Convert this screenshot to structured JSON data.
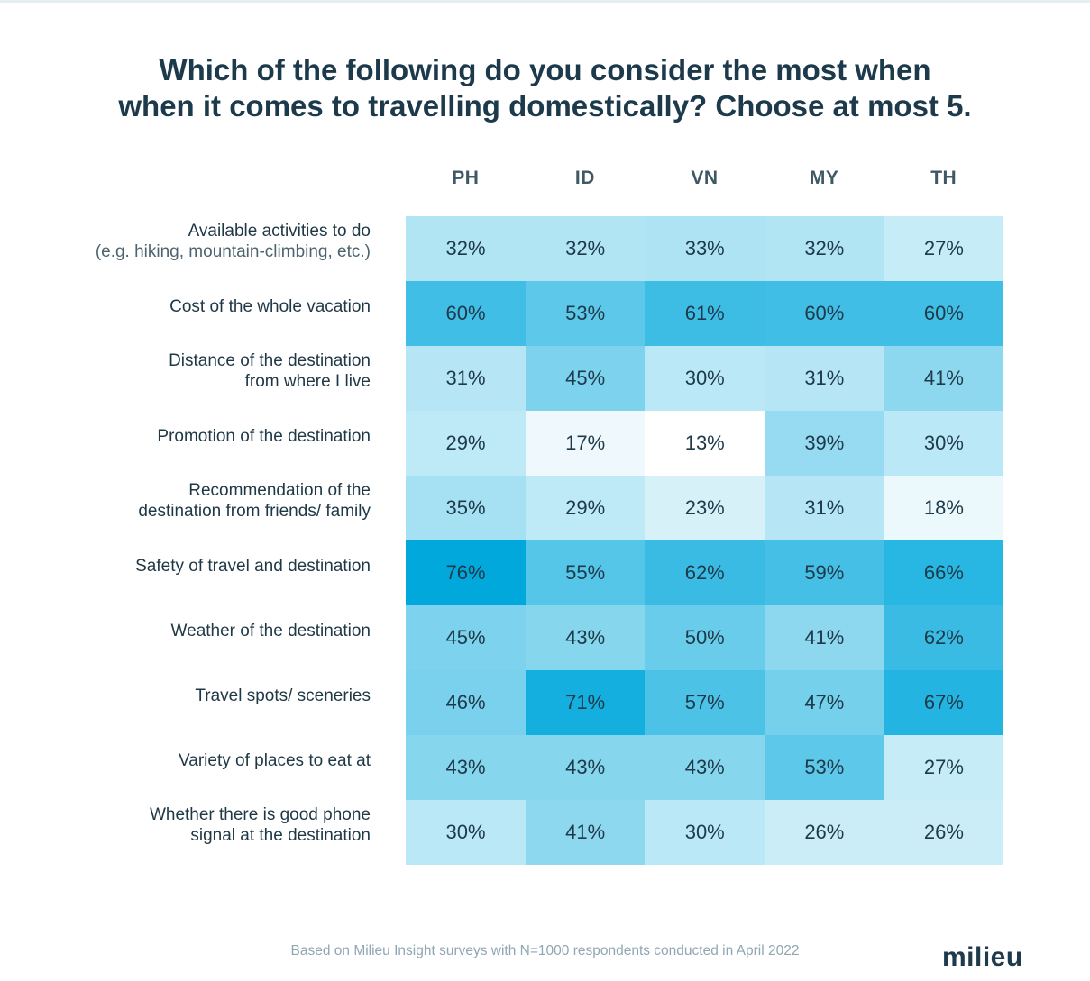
{
  "chart_data": {
    "type": "heatmap",
    "title_lines": [
      "Which of the following do you consider the most when",
      "when it comes to travelling domestically? Choose at most 5."
    ],
    "columns": [
      "PH",
      "ID",
      "VN",
      "MY",
      "TH"
    ],
    "rows": [
      {
        "label": [
          "Available activities to do"
        ],
        "sublabel": "(e.g. hiking, mountain-climbing, etc.)",
        "values": [
          32,
          32,
          33,
          32,
          27
        ]
      },
      {
        "label": [
          "Cost of the whole vacation"
        ],
        "sublabel": "",
        "values": [
          60,
          53,
          61,
          60,
          60
        ]
      },
      {
        "label": [
          "Distance of the destination",
          "from where I live"
        ],
        "sublabel": "",
        "values": [
          31,
          45,
          30,
          31,
          41
        ]
      },
      {
        "label": [
          "Promotion of the destination"
        ],
        "sublabel": "",
        "values": [
          29,
          17,
          13,
          39,
          30
        ]
      },
      {
        "label": [
          "Recommendation of the",
          "destination from friends/ family"
        ],
        "sublabel": "",
        "values": [
          35,
          29,
          23,
          31,
          18
        ]
      },
      {
        "label": [
          "Safety of travel and destination"
        ],
        "sublabel": "",
        "values": [
          76,
          55,
          62,
          59,
          66
        ]
      },
      {
        "label": [
          "Weather of the destination"
        ],
        "sublabel": "",
        "values": [
          45,
          43,
          50,
          41,
          62
        ]
      },
      {
        "label": [
          "Travel spots/ sceneries"
        ],
        "sublabel": "",
        "values": [
          46,
          71,
          57,
          47,
          67
        ]
      },
      {
        "label": [
          "Variety of places to eat at"
        ],
        "sublabel": "",
        "values": [
          43,
          43,
          43,
          53,
          27
        ]
      },
      {
        "label": [
          "Whether there is good phone",
          "signal at the destination"
        ],
        "sublabel": "",
        "values": [
          30,
          41,
          30,
          26,
          26
        ]
      }
    ],
    "value_suffix": "%",
    "color_scale": {
      "low": "#ffffff",
      "high": "#00a8dc",
      "min": 13,
      "max": 76
    }
  },
  "footer": "Based on Milieu Insight surveys with N=1000 respondents conducted in April 2022",
  "logo": "milieu"
}
